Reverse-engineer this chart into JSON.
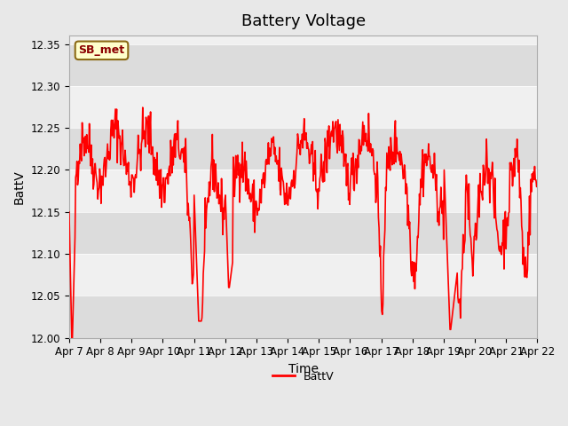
{
  "title": "Battery Voltage",
  "xlabel": "Time",
  "ylabel": "BattV",
  "ylim": [
    12.0,
    12.36
  ],
  "yticks": [
    12.0,
    12.05,
    12.1,
    12.15,
    12.2,
    12.25,
    12.3,
    12.35
  ],
  "line_color": "red",
  "line_width": 1.2,
  "legend_label": "BattV",
  "station_label": "SB_met",
  "bg_color": "#e8e8e8",
  "plot_bg_color": "#f0f0f0",
  "band_color1": "#dcdcdc",
  "band_color2": "#f0f0f0",
  "xtick_labels": [
    "Apr 7",
    "Apr 8",
    "Apr 9",
    "Apr 10",
    "Apr 11",
    "Apr 12",
    "Apr 13",
    "Apr 14",
    "Apr 15",
    "Apr 16",
    "Apr 17",
    "Apr 18",
    "Apr 19",
    "Apr 20",
    "Apr 21",
    "Apr 22"
  ],
  "title_fontsize": 13,
  "axis_label_fontsize": 10,
  "tick_fontsize": 8.5
}
